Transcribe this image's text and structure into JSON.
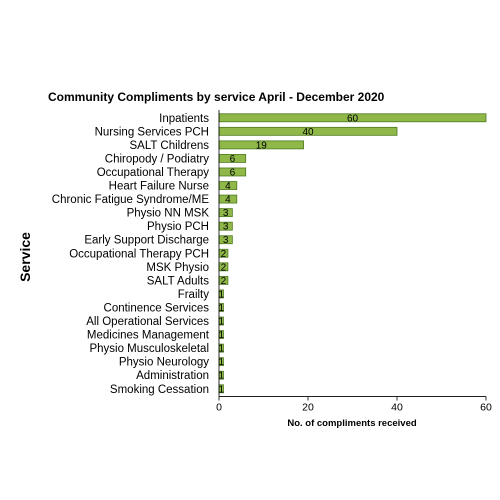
{
  "chart_data": {
    "type": "bar",
    "orientation": "horizontal",
    "title": "Community Compliments  by service April - December 2020",
    "ylabel": "Service",
    "xlabel": "No. of compliments received",
    "xlim": [
      0,
      60
    ],
    "xticks": [
      "0",
      "20",
      "40",
      "60"
    ],
    "grid": false,
    "legend": "none",
    "bar_color": "#8fb849",
    "bar_edge_color": "#4e7a1e",
    "categories": [
      "Inpatients",
      "Nursing Services PCH",
      "SALT Childrens",
      "Chiropody / Podiatry",
      "Occupational Therapy",
      "Heart Failure Nurse",
      "Chronic Fatigue Syndrome/ME",
      "Physio NN MSK",
      "Physio PCH",
      "Early Support  Discharge",
      "Occupational Therapy PCH",
      "MSK Physio",
      "SALT Adults",
      "Frailty",
      "Continence Services",
      "All Operational Services",
      "Medicines Management",
      "Physio Musculoskeletal",
      "Physio Neurology",
      "Administration",
      "Smoking Cessation"
    ],
    "values": [
      60,
      40,
      19,
      6,
      6,
      4,
      4,
      3,
      3,
      3,
      2,
      2,
      2,
      1,
      1,
      1,
      1,
      1,
      1,
      1,
      1
    ],
    "data_labels": [
      "60",
      "40",
      "19",
      "6",
      "6",
      "4",
      "4",
      "3",
      "3",
      "3",
      "2",
      "2",
      "2",
      "1",
      "1",
      "1",
      "1",
      "1",
      "1",
      "1",
      "1"
    ]
  }
}
